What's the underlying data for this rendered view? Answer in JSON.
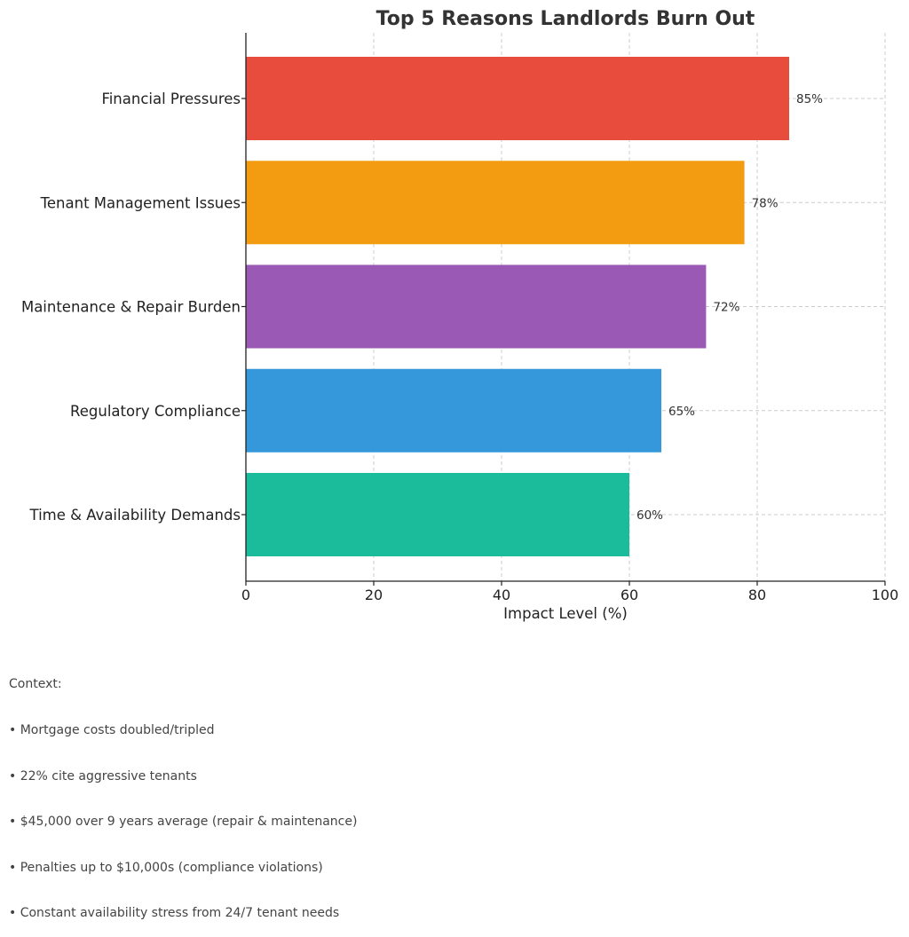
{
  "chart_data": {
    "type": "bar",
    "orientation": "horizontal",
    "title": "Top 5 Reasons Landlords Burn Out",
    "xlabel": "Impact Level (%)",
    "ylabel": "",
    "categories": [
      "Financial Pressures",
      "Tenant Management Issues",
      "Maintenance & Repair Burden",
      "Regulatory Compliance",
      "Time & Availability Demands"
    ],
    "values": [
      85,
      78,
      72,
      65,
      60
    ],
    "value_labels": [
      "85%",
      "78%",
      "72%",
      "65%",
      "60%"
    ],
    "colors": [
      "#e74c3c",
      "#f39c12",
      "#9b59b6",
      "#3498db",
      "#1abc9c"
    ],
    "xlim": [
      0,
      100
    ],
    "xticks": [
      0,
      20,
      40,
      60,
      80,
      100
    ],
    "grid": true
  },
  "context": {
    "heading": "Context:",
    "items": [
      "• Mortgage costs doubled/tripled",
      "• 22% cite aggressive tenants",
      "• $45,000 over 9 years average (repair & maintenance)",
      "• Penalties up to $10,000s (compliance violations)",
      "• Constant availability stress from 24/7 tenant needs"
    ]
  }
}
